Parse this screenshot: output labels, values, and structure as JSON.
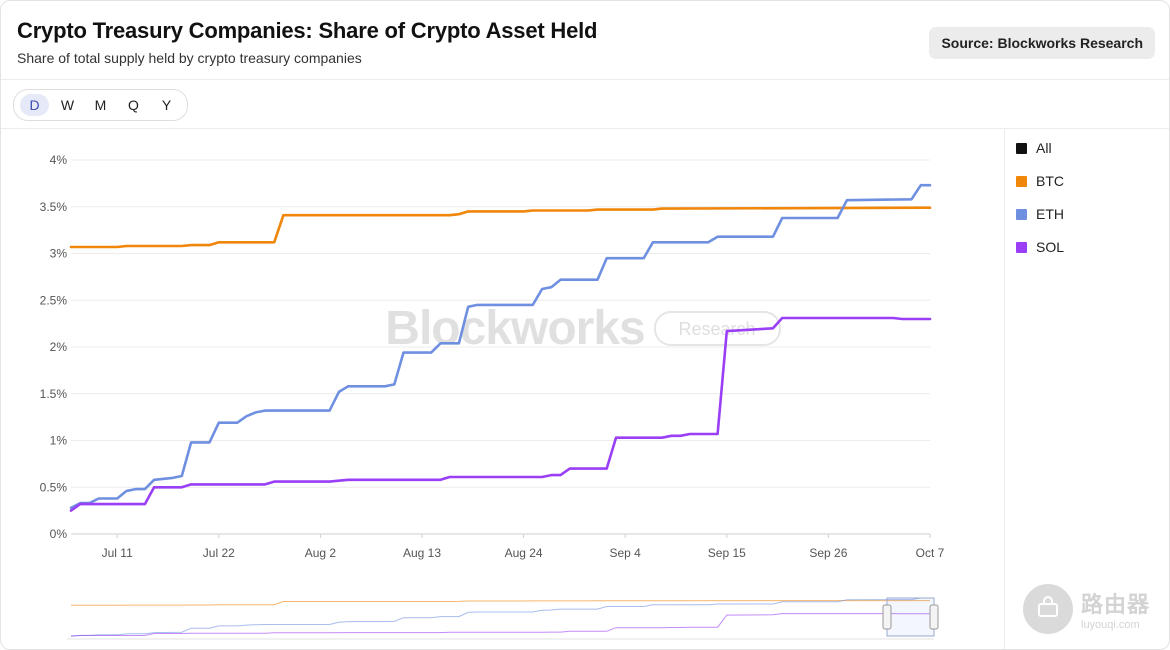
{
  "header": {
    "title": "Crypto Treasury Companies: Share of Crypto Asset Held",
    "subtitle": "Share of total supply held by crypto treasury companies",
    "source_label": "Source: Blockworks Research"
  },
  "periods": [
    {
      "label": "D",
      "active": true
    },
    {
      "label": "W",
      "active": false
    },
    {
      "label": "M",
      "active": false
    },
    {
      "label": "Q",
      "active": false
    },
    {
      "label": "Y",
      "active": false
    }
  ],
  "watermark": {
    "brand": "Blockworks",
    "tag": "Research"
  },
  "site_watermark": {
    "main": "路由器",
    "sub": "luyouqi.com"
  },
  "chart_data": {
    "type": "line",
    "xlabel": "",
    "ylabel": "",
    "ylim": [
      0,
      4
    ],
    "y_ticks": [
      "0%",
      "0.5%",
      "1%",
      "1.5%",
      "2%",
      "2.5%",
      "3%",
      "3.5%",
      "4%"
    ],
    "x_range": [
      "2025-07-06",
      "2025-10-07"
    ],
    "x_ticks": [
      {
        "date": "2025-07-11",
        "label": "Jul 11"
      },
      {
        "date": "2025-07-22",
        "label": "Jul 22"
      },
      {
        "date": "2025-08-02",
        "label": "Aug 2"
      },
      {
        "date": "2025-08-13",
        "label": "Aug 13"
      },
      {
        "date": "2025-08-24",
        "label": "Aug 24"
      },
      {
        "date": "2025-09-04",
        "label": "Sep 4"
      },
      {
        "date": "2025-09-15",
        "label": "Sep 15"
      },
      {
        "date": "2025-09-26",
        "label": "Sep 26"
      },
      {
        "date": "2025-10-07",
        "label": "Oct 7"
      }
    ],
    "grid": true,
    "legend_position": "right",
    "legend": [
      {
        "name": "All",
        "color": "#111111"
      },
      {
        "name": "BTC",
        "color": "#f0860a"
      },
      {
        "name": "ETH",
        "color": "#6f8fe0"
      },
      {
        "name": "SOL",
        "color": "#9a3ff5"
      }
    ],
    "series": [
      {
        "name": "BTC",
        "color": "#f0860a",
        "points": [
          [
            "2025-07-06",
            3.07
          ],
          [
            "2025-07-11",
            3.07
          ],
          [
            "2025-07-12",
            3.08
          ],
          [
            "2025-07-18",
            3.08
          ],
          [
            "2025-07-19",
            3.09
          ],
          [
            "2025-07-21",
            3.09
          ],
          [
            "2025-07-22",
            3.12
          ],
          [
            "2025-07-28",
            3.12
          ],
          [
            "2025-07-29",
            3.41
          ],
          [
            "2025-08-16",
            3.41
          ],
          [
            "2025-08-17",
            3.42
          ],
          [
            "2025-08-18",
            3.45
          ],
          [
            "2025-08-24",
            3.45
          ],
          [
            "2025-08-25",
            3.46
          ],
          [
            "2025-08-31",
            3.46
          ],
          [
            "2025-09-01",
            3.47
          ],
          [
            "2025-09-07",
            3.47
          ],
          [
            "2025-09-08",
            3.48
          ],
          [
            "2025-10-07",
            3.49
          ]
        ]
      },
      {
        "name": "ETH",
        "color": "#6f8fe0",
        "points": [
          [
            "2025-07-06",
            0.28
          ],
          [
            "2025-07-07",
            0.33
          ],
          [
            "2025-07-08",
            0.33
          ],
          [
            "2025-07-09",
            0.38
          ],
          [
            "2025-07-11",
            0.38
          ],
          [
            "2025-07-12",
            0.46
          ],
          [
            "2025-07-13",
            0.48
          ],
          [
            "2025-07-14",
            0.48
          ],
          [
            "2025-07-15",
            0.58
          ],
          [
            "2025-07-17",
            0.6
          ],
          [
            "2025-07-18",
            0.62
          ],
          [
            "2025-07-19",
            0.98
          ],
          [
            "2025-07-21",
            0.98
          ],
          [
            "2025-07-22",
            1.19
          ],
          [
            "2025-07-24",
            1.19
          ],
          [
            "2025-07-25",
            1.26
          ],
          [
            "2025-07-26",
            1.3
          ],
          [
            "2025-07-27",
            1.32
          ],
          [
            "2025-08-03",
            1.32
          ],
          [
            "2025-08-04",
            1.52
          ],
          [
            "2025-08-05",
            1.58
          ],
          [
            "2025-08-09",
            1.58
          ],
          [
            "2025-08-10",
            1.6
          ],
          [
            "2025-08-11",
            1.94
          ],
          [
            "2025-08-14",
            1.94
          ],
          [
            "2025-08-15",
            2.04
          ],
          [
            "2025-08-17",
            2.04
          ],
          [
            "2025-08-18",
            2.43
          ],
          [
            "2025-08-19",
            2.45
          ],
          [
            "2025-08-25",
            2.45
          ],
          [
            "2025-08-26",
            2.62
          ],
          [
            "2025-08-27",
            2.64
          ],
          [
            "2025-08-28",
            2.72
          ],
          [
            "2025-09-01",
            2.72
          ],
          [
            "2025-09-02",
            2.95
          ],
          [
            "2025-09-06",
            2.95
          ],
          [
            "2025-09-07",
            3.12
          ],
          [
            "2025-09-13",
            3.12
          ],
          [
            "2025-09-14",
            3.18
          ],
          [
            "2025-09-20",
            3.18
          ],
          [
            "2025-09-21",
            3.38
          ],
          [
            "2025-09-27",
            3.38
          ],
          [
            "2025-09-28",
            3.57
          ],
          [
            "2025-10-05",
            3.58
          ],
          [
            "2025-10-06",
            3.73
          ],
          [
            "2025-10-07",
            3.73
          ]
        ]
      },
      {
        "name": "SOL",
        "color": "#9a3ff5",
        "points": [
          [
            "2025-07-06",
            0.25
          ],
          [
            "2025-07-07",
            0.32
          ],
          [
            "2025-07-13",
            0.32
          ],
          [
            "2025-07-14",
            0.32
          ],
          [
            "2025-07-15",
            0.5
          ],
          [
            "2025-07-18",
            0.5
          ],
          [
            "2025-07-19",
            0.53
          ],
          [
            "2025-07-27",
            0.53
          ],
          [
            "2025-07-28",
            0.56
          ],
          [
            "2025-08-03",
            0.56
          ],
          [
            "2025-08-05",
            0.58
          ],
          [
            "2025-08-15",
            0.58
          ],
          [
            "2025-08-16",
            0.61
          ],
          [
            "2025-08-26",
            0.61
          ],
          [
            "2025-08-27",
            0.63
          ],
          [
            "2025-08-28",
            0.63
          ],
          [
            "2025-08-29",
            0.7
          ],
          [
            "2025-09-02",
            0.7
          ],
          [
            "2025-09-03",
            1.03
          ],
          [
            "2025-09-08",
            1.03
          ],
          [
            "2025-09-09",
            1.05
          ],
          [
            "2025-09-10",
            1.05
          ],
          [
            "2025-09-11",
            1.07
          ],
          [
            "2025-09-14",
            1.07
          ],
          [
            "2025-09-15",
            2.17
          ],
          [
            "2025-09-20",
            2.2
          ],
          [
            "2025-09-21",
            2.31
          ],
          [
            "2025-10-03",
            2.31
          ],
          [
            "2025-10-04",
            2.3
          ],
          [
            "2025-10-07",
            2.3
          ]
        ]
      }
    ]
  }
}
